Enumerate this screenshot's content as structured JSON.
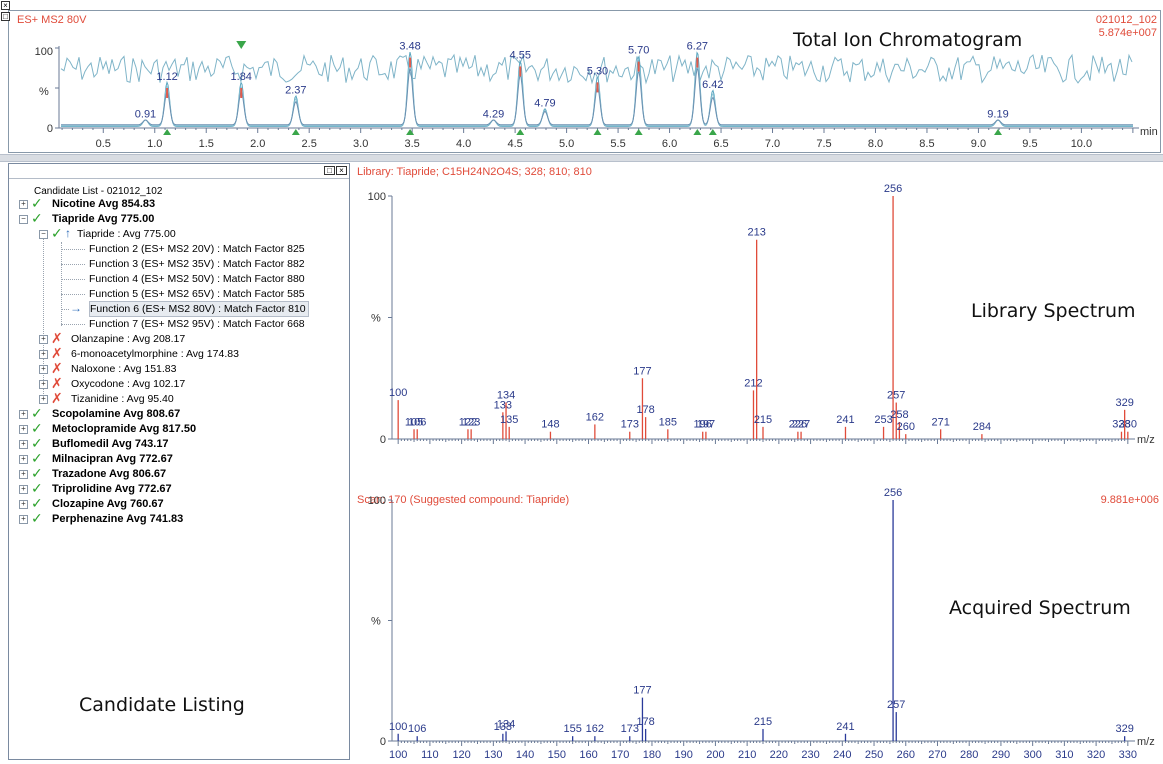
{
  "tic": {
    "function_label": "ES+ MS2  80V",
    "file_id": "021012_102",
    "intensity": "5.874e+007",
    "title": "Total Ion Chromatogram",
    "y_top": "100",
    "y_pct": "%",
    "y_zero": "0",
    "x_unit": "min",
    "x_ticks": [
      "0.5",
      "1.0",
      "1.5",
      "2.0",
      "2.5",
      "3.0",
      "3.5",
      "4.0",
      "4.5",
      "5.0",
      "5.5",
      "6.0",
      "6.5",
      "7.0",
      "7.5",
      "8.0",
      "8.5",
      "9.0",
      "9.5",
      "10.0"
    ],
    "peaks": [
      {
        "t": 0.91,
        "label": "0.91",
        "h": 0.08
      },
      {
        "t": 1.12,
        "label": "1.12",
        "h": 0.55
      },
      {
        "t": 1.84,
        "label": "1.84",
        "h": 0.55
      },
      {
        "t": 2.37,
        "label": "2.37",
        "h": 0.38
      },
      {
        "t": 3.48,
        "label": "3.48",
        "h": 0.93
      },
      {
        "t": 4.29,
        "label": "4.29",
        "h": 0.08
      },
      {
        "t": 4.55,
        "label": "4.55",
        "h": 0.82
      },
      {
        "t": 4.79,
        "label": "4.79",
        "h": 0.22
      },
      {
        "t": 5.3,
        "label": "5.30",
        "h": 0.62
      },
      {
        "t": 5.7,
        "label": "5.70",
        "h": 0.88
      },
      {
        "t": 6.27,
        "label": "6.27",
        "h": 0.93
      },
      {
        "t": 6.42,
        "label": "6.42",
        "h": 0.45
      },
      {
        "t": 9.19,
        "label": "9.19",
        "h": 0.08
      }
    ],
    "marker_times": [
      1.12,
      2.37,
      3.48,
      4.55,
      5.3,
      5.7,
      6.27,
      6.42,
      9.19
    ],
    "selected_marker_time": 1.84
  },
  "candidate_list": {
    "title": "Candidate List - 021012_102",
    "footer_label": "Candidate Listing",
    "items": [
      {
        "label": "Nicotine Avg 854.83",
        "status": "match",
        "bold": true,
        "expanded": false
      },
      {
        "label": "Tiapride Avg 775.00",
        "status": "match",
        "bold": true,
        "expanded": true
      },
      {
        "label": "Tiapride : Avg 775.00",
        "status": "match",
        "bold": false,
        "expanded": true,
        "level": 1
      },
      {
        "label": "Function 2 (ES+ MS2  20V) : Match Factor 825",
        "level": 2
      },
      {
        "label": "Function 3 (ES+ MS2  35V) : Match Factor 882",
        "level": 2
      },
      {
        "label": "Function 4 (ES+ MS2  50V) : Match Factor 880",
        "level": 2
      },
      {
        "label": "Function 5 (ES+ MS2  65V) : Match Factor 585",
        "level": 2
      },
      {
        "label": "Function 6 (ES+ MS2  80V) : Match Factor 810",
        "level": 2,
        "selected": true
      },
      {
        "label": "Function 7 (ES+ MS2  95V) : Match Factor 668",
        "level": 2
      },
      {
        "label": "Olanzapine : Avg 208.17",
        "status": "nomatch",
        "level": 1
      },
      {
        "label": "6-monoacetylmorphine : Avg 174.83",
        "status": "nomatch",
        "level": 1
      },
      {
        "label": "Naloxone : Avg 151.83",
        "status": "nomatch",
        "level": 1
      },
      {
        "label": "Oxycodone : Avg 102.17",
        "status": "nomatch",
        "level": 1
      },
      {
        "label": "Tizanidine : Avg 95.40",
        "status": "nomatch",
        "level": 1
      },
      {
        "label": "Scopolamine Avg 808.67",
        "status": "match",
        "bold": true
      },
      {
        "label": "Metoclopramide Avg 817.50",
        "status": "match",
        "bold": true
      },
      {
        "label": "Buflomedil Avg 743.17",
        "status": "match",
        "bold": true
      },
      {
        "label": "Milnacipran Avg 772.67",
        "status": "match",
        "bold": true
      },
      {
        "label": "Trazadone Avg 806.67",
        "status": "match",
        "bold": true
      },
      {
        "label": "Triprolidine Avg 772.67",
        "status": "match",
        "bold": true
      },
      {
        "label": "Clozapine Avg 760.67",
        "status": "match",
        "bold": true
      },
      {
        "label": "Perphenazine Avg 741.83",
        "status": "match",
        "bold": true
      }
    ]
  },
  "library": {
    "header": "Library: Tiapride; C15H24N2O4S; 328; 810; 810",
    "panel_label": "Library Spectrum",
    "y_top": "100",
    "y_pct": "%",
    "y_zero": "0",
    "x_unit": "m/z",
    "color": "#e04b3a"
  },
  "acquired": {
    "header": "Scan: 170 (Suggested compound: Tiapride)",
    "intensity": "9.881e+006",
    "panel_label": "Acquired Spectrum",
    "y_top": "100",
    "y_pct": "%",
    "y_zero": "0",
    "x_unit": "m/z",
    "color": "#2a3a9a"
  },
  "chart_data": [
    {
      "type": "line",
      "title": "Total Ion Chromatogram",
      "xlabel": "min",
      "ylabel": "%",
      "xlim": [
        0,
        10.5
      ],
      "ylim": [
        0,
        100
      ],
      "peak_labels": [
        "0.91",
        "1.12",
        "1.84",
        "2.37",
        "3.48",
        "4.29",
        "4.55",
        "4.79",
        "5.30",
        "5.70",
        "6.27",
        "6.42",
        "9.19"
      ],
      "x": [
        0.91,
        1.12,
        1.84,
        2.37,
        3.48,
        4.29,
        4.55,
        4.79,
        5.3,
        5.7,
        6.27,
        6.42,
        9.19
      ]
    },
    {
      "type": "bar",
      "title": "Library Spectrum",
      "xlabel": "m/z",
      "ylabel": "%",
      "xlim": [
        100,
        330
      ],
      "ylim": [
        0,
        100
      ],
      "x": [
        100,
        105,
        106,
        122,
        123,
        133,
        134,
        135,
        148,
        162,
        173,
        177,
        178,
        185,
        196,
        197,
        212,
        213,
        215,
        226,
        227,
        241,
        253,
        256,
        257,
        258,
        260,
        271,
        284,
        328,
        329,
        330
      ],
      "values": [
        16,
        4,
        4,
        4,
        4,
        11,
        15,
        5,
        3,
        6,
        3,
        25,
        9,
        4,
        3,
        3,
        20,
        82,
        5,
        3,
        3,
        5,
        5,
        100,
        15,
        7,
        2,
        4,
        2,
        3,
        12,
        3
      ]
    },
    {
      "type": "bar",
      "title": "Acquired Spectrum",
      "xlabel": "m/z",
      "ylabel": "%",
      "xlim": [
        100,
        330
      ],
      "ylim": [
        0,
        100
      ],
      "x": [
        100,
        106,
        133,
        134,
        155,
        162,
        173,
        177,
        178,
        215,
        241,
        256,
        257,
        329
      ],
      "values": [
        3,
        2,
        3,
        4,
        2,
        2,
        2,
        18,
        5,
        5,
        3,
        100,
        12,
        2
      ],
      "tick_labels": [
        "100",
        "110",
        "120",
        "130",
        "140",
        "150",
        "160",
        "170",
        "180",
        "190",
        "200",
        "210",
        "220",
        "230",
        "240",
        "250",
        "260",
        "270",
        "280",
        "290",
        "300",
        "310",
        "320",
        "330"
      ]
    }
  ]
}
